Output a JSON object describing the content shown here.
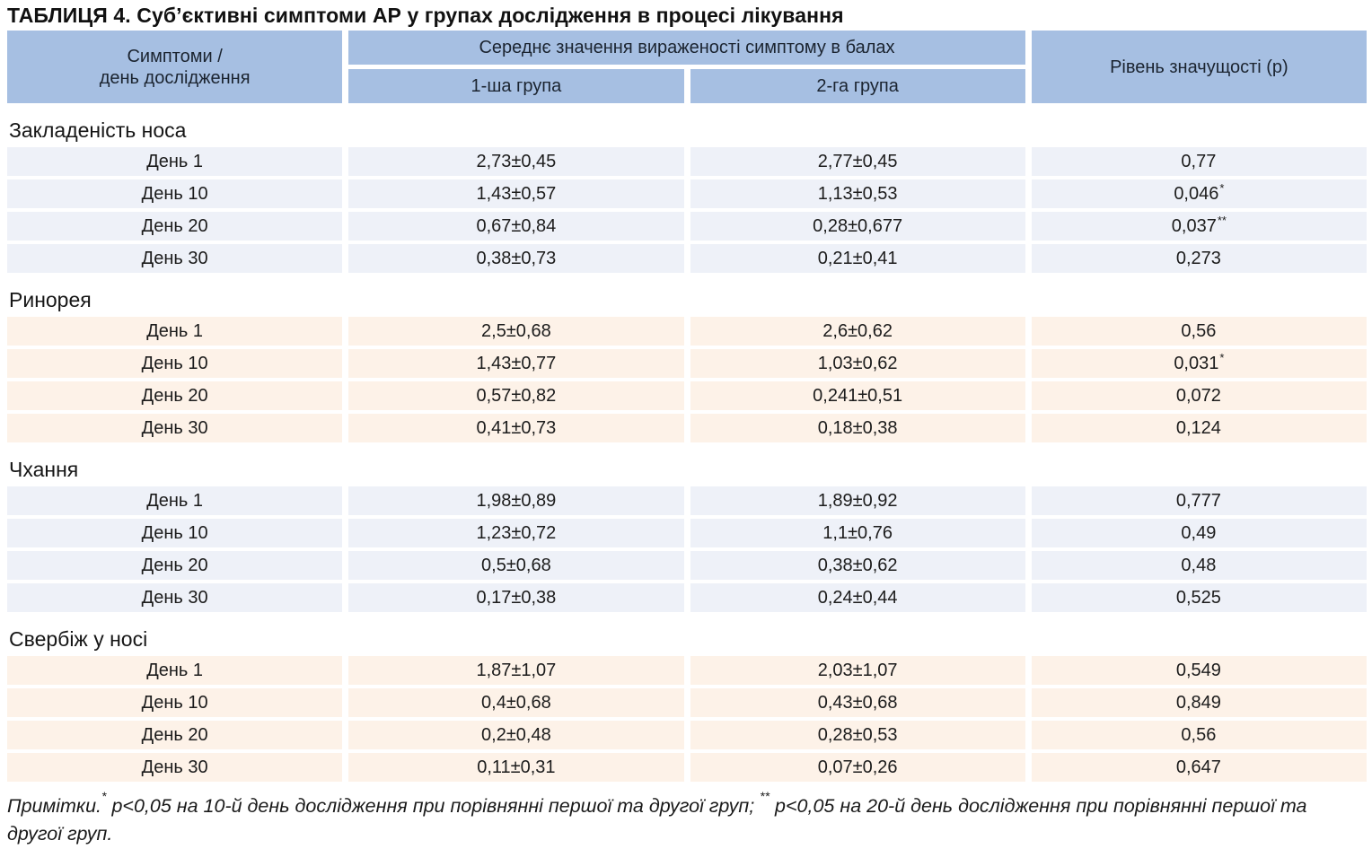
{
  "title": "ТАБЛИЦЯ 4. Суб’єктивні симптоми АР у групах дослідження в процесі лікування",
  "colors": {
    "header_bg": "#a6bfe2",
    "row_blue": "#eef1f8",
    "row_cream": "#fdf2e8",
    "text": "#1a1a1a"
  },
  "header": {
    "col_symptoms_line1": "Симптоми /",
    "col_symptoms_line2": "день дослідження",
    "col_mean": "Середнє значення вираженості симптому в балах",
    "col_group1": "1-ша група",
    "col_group2": "2-га група",
    "col_p": "Рівень значущості (p)"
  },
  "sections": [
    {
      "name": "Закладеність носа",
      "tint": "blue",
      "rows": [
        {
          "day": "День 1",
          "group1": "2,73±0,45",
          "group2": "2,77±0,45",
          "p": "0,77",
          "p_sup": ""
        },
        {
          "day": "День 10",
          "group1": "1,43±0,57",
          "group2": "1,13±0,53",
          "p": "0,046",
          "p_sup": "*"
        },
        {
          "day": "День 20",
          "group1": "0,67±0,84",
          "group2": "0,28±0,677",
          "p": "0,037",
          "p_sup": "**"
        },
        {
          "day": "День 30",
          "group1": "0,38±0,73",
          "group2": "0,21±0,41",
          "p": "0,273",
          "p_sup": ""
        }
      ]
    },
    {
      "name": "Ринорея",
      "tint": "cream",
      "rows": [
        {
          "day": "День 1",
          "group1": "2,5±0,68",
          "group2": "2,6±0,62",
          "p": "0,56",
          "p_sup": ""
        },
        {
          "day": "День 10",
          "group1": "1,43±0,77",
          "group2": "1,03±0,62",
          "p": "0,031",
          "p_sup": "*"
        },
        {
          "day": "День 20",
          "group1": "0,57±0,82",
          "group2": "0,241±0,51",
          "p": "0,072",
          "p_sup": ""
        },
        {
          "day": "День 30",
          "group1": "0,41±0,73",
          "group2": "0,18±0,38",
          "p": "0,124",
          "p_sup": ""
        }
      ]
    },
    {
      "name": "Чхання",
      "tint": "blue",
      "rows": [
        {
          "day": "День 1",
          "group1": "1,98±0,89",
          "group2": "1,89±0,92",
          "p": "0,777",
          "p_sup": ""
        },
        {
          "day": "День 10",
          "group1": "1,23±0,72",
          "group2": "1,1±0,76",
          "p": "0,49",
          "p_sup": ""
        },
        {
          "day": "День 20",
          "group1": "0,5±0,68",
          "group2": "0,38±0,62",
          "p": "0,48",
          "p_sup": ""
        },
        {
          "day": "День 30",
          "group1": "0,17±0,38",
          "group2": "0,24±0,44",
          "p": "0,525",
          "p_sup": ""
        }
      ]
    },
    {
      "name": "Свербіж у носі",
      "tint": "cream",
      "rows": [
        {
          "day": "День 1",
          "group1": "1,87±1,07",
          "group2": "2,03±1,07",
          "p": "0,549",
          "p_sup": ""
        },
        {
          "day": "День 10",
          "group1": "0,4±0,68",
          "group2": "0,43±0,68",
          "p": "0,849",
          "p_sup": ""
        },
        {
          "day": "День 20",
          "group1": "0,2±0,48",
          "group2": "0,28±0,53",
          "p": "0,56",
          "p_sup": ""
        },
        {
          "day": "День 30",
          "group1": "0,11±0,31",
          "group2": "0,07±0,26",
          "p": "0,647",
          "p_sup": ""
        }
      ]
    }
  ],
  "notes": {
    "label": "Примітки.",
    "sup1": "*",
    "part1": " p<0,05 на 10-й день дослідження при порівнянні першої та другої груп; ",
    "sup2": "**",
    "part2": " p<0,05 на 20-й день дослідження при порівнянні першої та другої груп."
  }
}
